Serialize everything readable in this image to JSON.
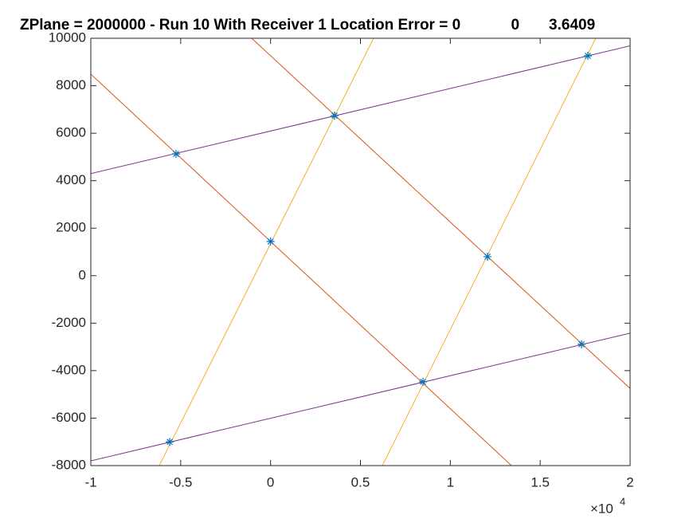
{
  "chart_data": {
    "type": "line",
    "title": "ZPlane = 2000000 - Run 10 With Receiver 1 Location Error = 0            0       3.6409",
    "xlim": [
      -10000,
      20000
    ],
    "ylim": [
      -8000,
      10000
    ],
    "xticks": [
      {
        "value": -10000,
        "label": "-1"
      },
      {
        "value": -5000,
        "label": "-0.5"
      },
      {
        "value": 0,
        "label": "0"
      },
      {
        "value": 5000,
        "label": "0.5"
      },
      {
        "value": 10000,
        "label": "1"
      },
      {
        "value": 15000,
        "label": "1.5"
      },
      {
        "value": 20000,
        "label": "2"
      }
    ],
    "x_multiplier": {
      "base": "×10",
      "exponent": "4"
    },
    "yticks": [
      -8000,
      -6000,
      -4000,
      -2000,
      0,
      2000,
      4000,
      6000,
      8000,
      10000
    ],
    "grid": false,
    "series": [
      {
        "color": "#7E2F8E",
        "x": [
          -10000,
          20000
        ],
        "values": [
          4300,
          9680
        ]
      },
      {
        "color": "#7E2F8E",
        "x": [
          -10000,
          20000
        ],
        "values": [
          -7800,
          -2420
        ]
      },
      {
        "color": "#D95319",
        "x": [
          -10000,
          13400
        ],
        "values": [
          8490,
          -8000
        ]
      },
      {
        "color": "#D95319",
        "x": [
          -1050,
          20000
        ],
        "values": [
          10000,
          -4750
        ]
      },
      {
        "color": "#EDB120",
        "x": [
          -6190,
          5730
        ],
        "values": [
          -8000,
          10000
        ]
      },
      {
        "color": "#EDB120",
        "x": [
          6220,
          18090
        ],
        "values": [
          -8000,
          10000
        ]
      },
      {
        "color": "#0072BD",
        "marker": "asterisk",
        "x": [
          -5260,
          3560,
          17650,
          0,
          12070,
          17300,
          8480,
          -5610
        ],
        "values": [
          5130,
          6740,
          9260,
          1440,
          800,
          -2890,
          -4470,
          -7000
        ]
      }
    ]
  }
}
